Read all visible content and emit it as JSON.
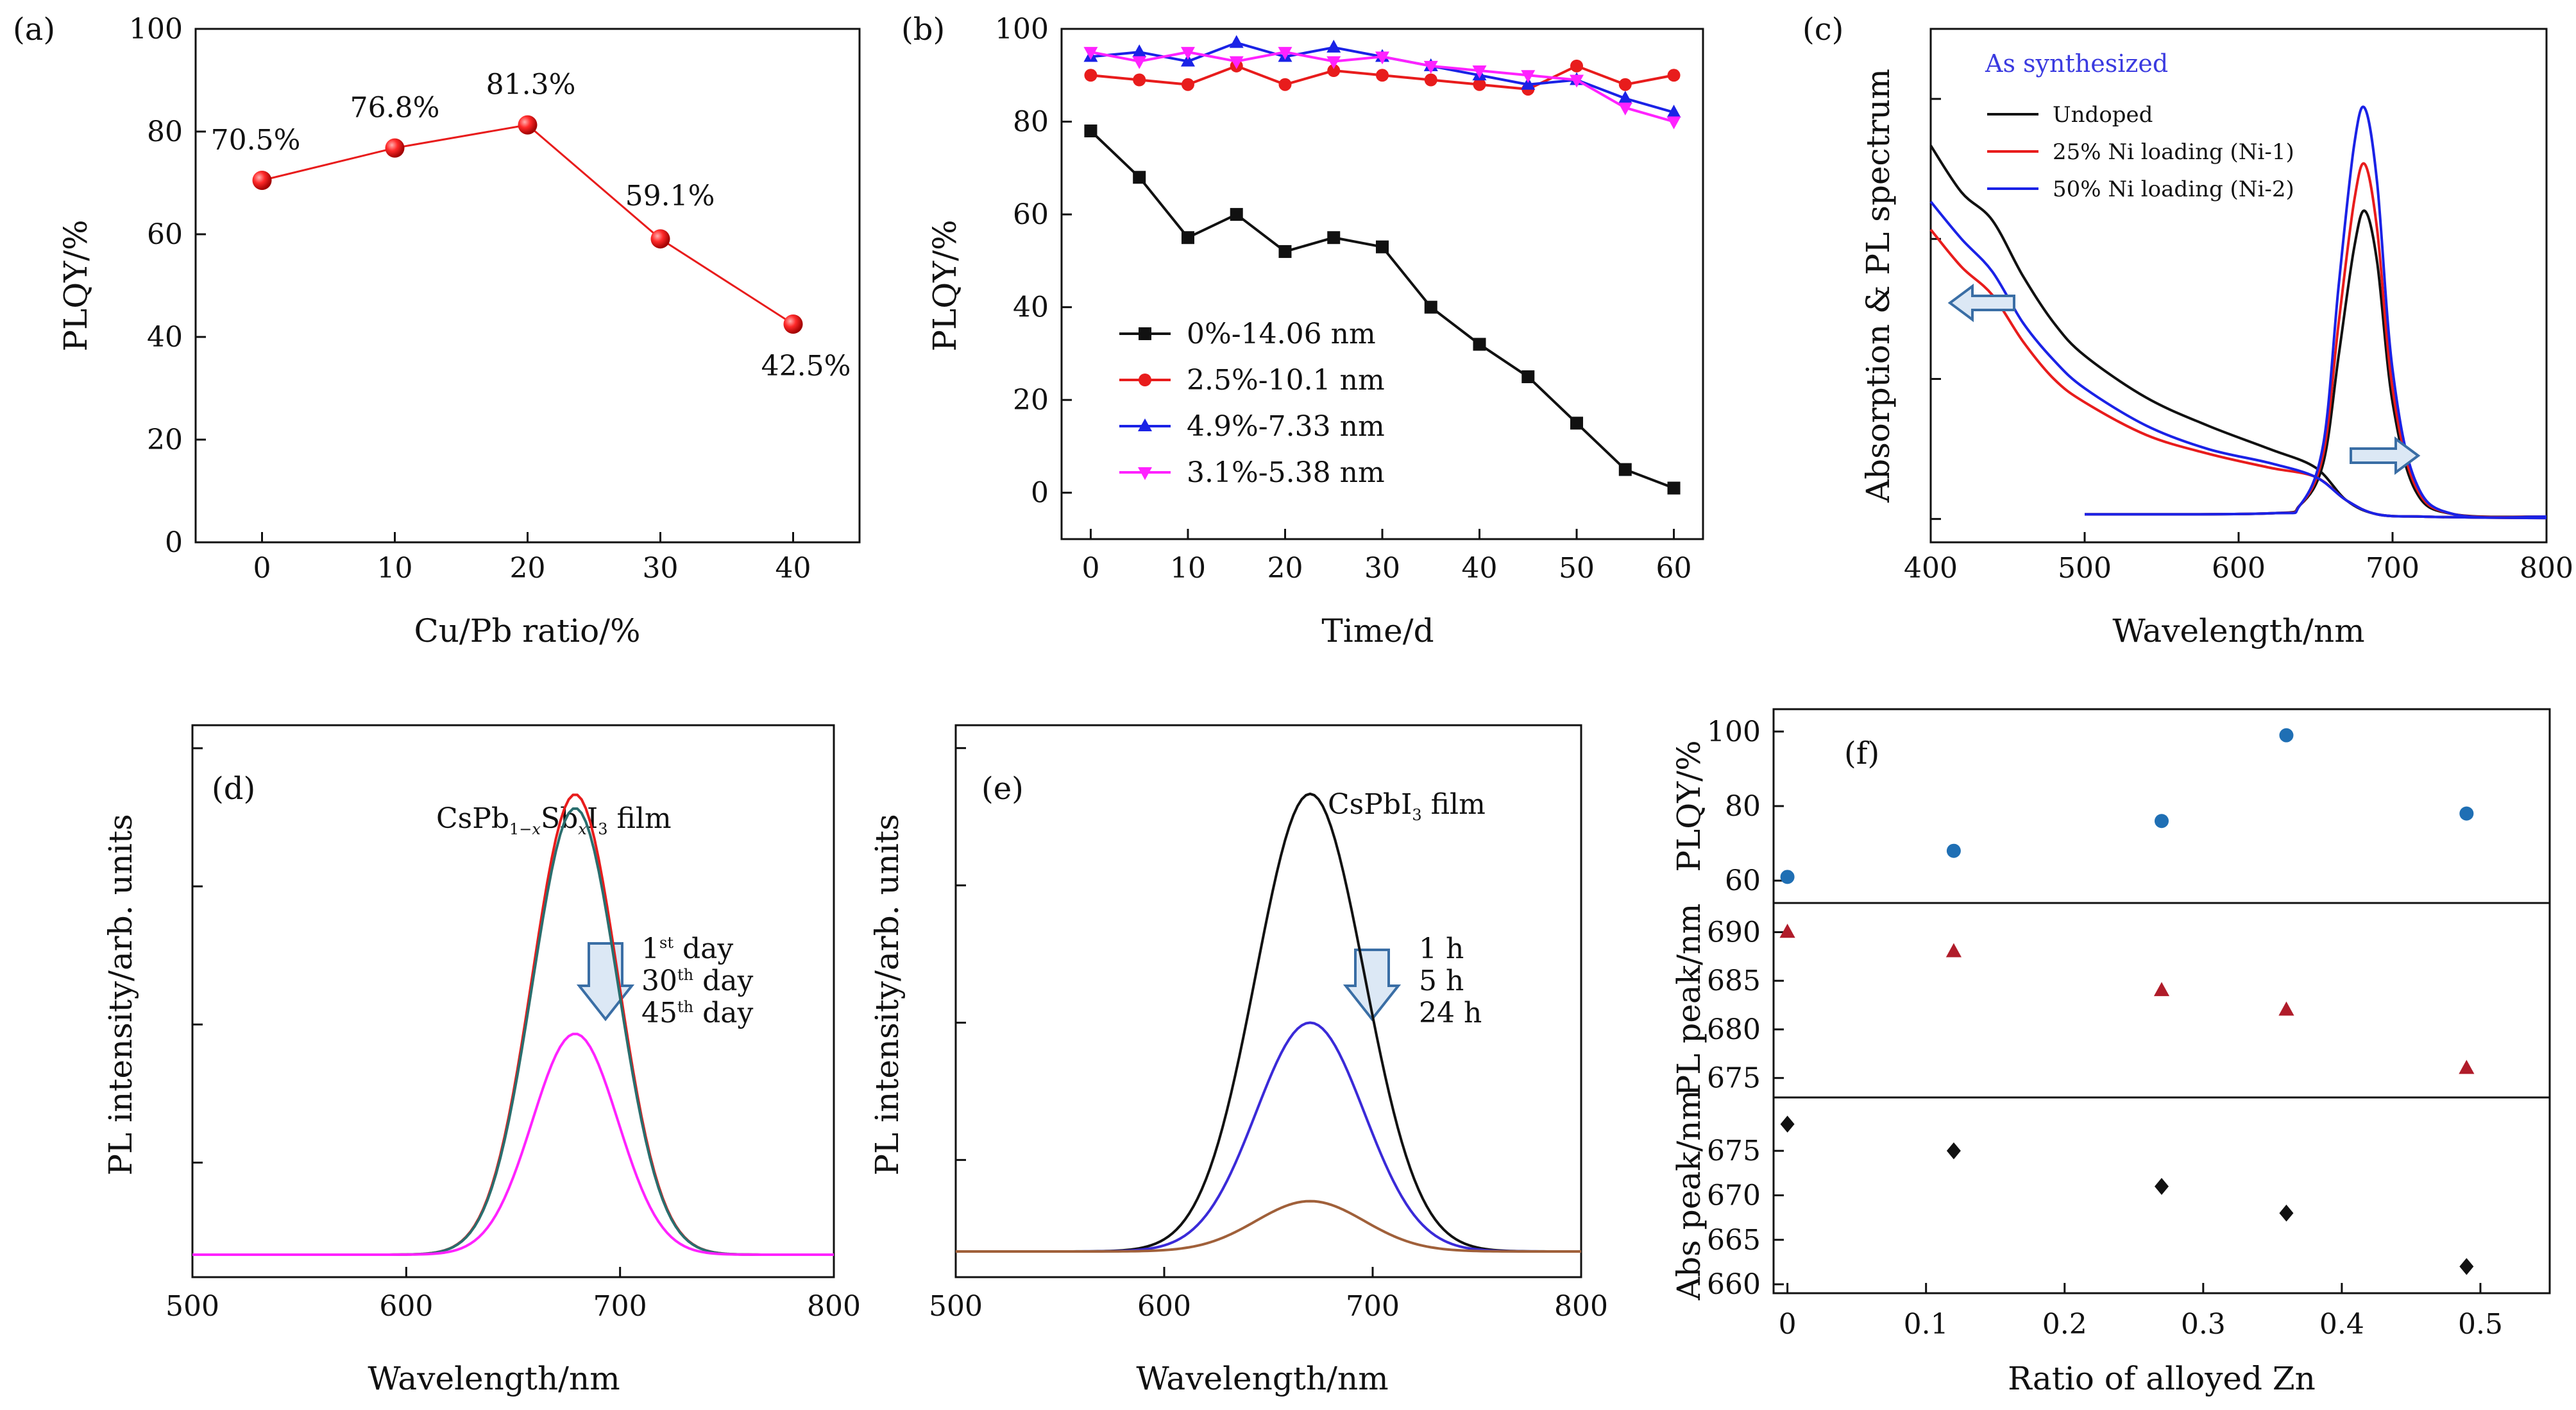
{
  "colors": {
    "axis": "#111111",
    "red": "#e81c1c",
    "black": "#111111",
    "blue": "#1a22e6",
    "magenta": "#ff22ff",
    "teal": "#2a6e6e",
    "brown": "#a0603a",
    "purple_blue": "#3a2ad8",
    "dark_red": "#b01c2a",
    "steel_blue": "#1f6fb4",
    "arrow_fill": "#dce8f5",
    "arrow_stroke": "#3a6ea5",
    "as_synth": "#3a3ae0"
  },
  "chart_data": [
    {
      "id": "a",
      "panel_label": "(a)",
      "type": "line",
      "xlabel": "Cu/Pb ratio/%",
      "ylabel": "PLQY/%",
      "xlim": [
        -5,
        45
      ],
      "ylim": [
        0,
        100
      ],
      "xticks": [
        "0",
        "10",
        "20",
        "30",
        "40"
      ],
      "yticks": [
        "0",
        "20",
        "40",
        "60",
        "80",
        "100"
      ],
      "series": [
        {
          "x": [
            0,
            10,
            20,
            30,
            40
          ],
          "y": [
            70.5,
            76.8,
            81.3,
            59.1,
            42.5
          ],
          "color": "red",
          "marker": "sphere"
        }
      ],
      "data_labels": [
        "70.5%",
        "76.8%",
        "81.3%",
        "59.1%",
        "42.5%"
      ]
    },
    {
      "id": "b",
      "panel_label": "(b)",
      "type": "line",
      "xlabel": "Time/d",
      "ylabel": "PLQY/%",
      "xlim": [
        -3,
        63
      ],
      "ylim": [
        -10,
        100
      ],
      "xticks": [
        "0",
        "10",
        "20",
        "30",
        "40",
        "50",
        "60"
      ],
      "yticks": [
        "0",
        "20",
        "40",
        "60",
        "80",
        "100"
      ],
      "legend_position": "lower-left",
      "series": [
        {
          "name": "0%-14.06 nm",
          "color": "black",
          "marker": "square",
          "x": [
            0,
            5,
            10,
            15,
            20,
            25,
            30,
            35,
            40,
            45,
            50,
            55,
            60
          ],
          "y": [
            78,
            68,
            55,
            60,
            52,
            55,
            53,
            40,
            32,
            25,
            15,
            5,
            1
          ]
        },
        {
          "name": "2.5%-10.1 nm",
          "color": "red",
          "marker": "circle",
          "x": [
            0,
            5,
            10,
            15,
            20,
            25,
            30,
            35,
            40,
            45,
            50,
            55,
            60
          ],
          "y": [
            90,
            89,
            88,
            92,
            88,
            91,
            90,
            89,
            88,
            87,
            92,
            88,
            90
          ]
        },
        {
          "name": "4.9%-7.33 nm",
          "color": "blue",
          "marker": "triangle-up",
          "x": [
            0,
            5,
            10,
            15,
            20,
            25,
            30,
            35,
            40,
            45,
            50,
            55,
            60
          ],
          "y": [
            94,
            95,
            93,
            97,
            94,
            96,
            94,
            92,
            90,
            88,
            89,
            85,
            82
          ]
        },
        {
          "name": "3.1%-5.38 nm",
          "color": "magenta",
          "marker": "triangle-down",
          "x": [
            0,
            5,
            10,
            15,
            20,
            25,
            30,
            35,
            40,
            45,
            50,
            55,
            60
          ],
          "y": [
            95,
            93,
            95,
            93,
            95,
            93,
            94,
            92,
            91,
            90,
            89,
            83,
            80
          ]
        }
      ]
    },
    {
      "id": "c",
      "panel_label": "(c)",
      "type": "line",
      "xlabel": "Wavelength/nm",
      "ylabel": "Absorption & PL spectrum",
      "xlim": [
        400,
        800
      ],
      "ylim": [
        0,
        1.1
      ],
      "xticks": [
        "400",
        "500",
        "600",
        "700",
        "800"
      ],
      "annotation": "As synthesized",
      "legend_position": "top-left",
      "series": [
        {
          "name": "Undoped",
          "color": "black",
          "absorption": {
            "x": [
              400,
              420,
              440,
              460,
              480,
              500,
              540,
              580,
              620,
              650,
              670,
              690,
              720,
              760,
              800
            ],
            "y": [
              0.8,
              0.7,
              0.64,
              0.52,
              0.42,
              0.35,
              0.26,
              0.2,
              0.15,
              0.11,
              0.04,
              0.01,
              0.005,
              0.003,
              0.002
            ]
          },
          "pl": {
            "x": [
              500,
              620,
              640,
              655,
              665,
              675,
              682,
              690,
              700,
              715,
              740,
              800
            ],
            "y": [
              0.01,
              0.012,
              0.03,
              0.12,
              0.35,
              0.58,
              0.66,
              0.55,
              0.25,
              0.06,
              0.01,
              0.005
            ]
          }
        },
        {
          "name": "25% Ni loading (Ni-1)",
          "color": "red",
          "absorption": {
            "x": [
              400,
              420,
              440,
              460,
              480,
              500,
              540,
              580,
              620,
              650,
              670,
              690,
              720,
              760,
              800
            ],
            "y": [
              0.62,
              0.54,
              0.48,
              0.38,
              0.3,
              0.25,
              0.18,
              0.14,
              0.11,
              0.09,
              0.04,
              0.01,
              0.005,
              0.003,
              0.002
            ]
          },
          "pl": {
            "x": [
              500,
              620,
              640,
              655,
              665,
              675,
              682,
              690,
              700,
              715,
              740,
              800
            ],
            "y": [
              0.01,
              0.012,
              0.03,
              0.14,
              0.42,
              0.68,
              0.76,
              0.62,
              0.28,
              0.07,
              0.01,
              0.005
            ]
          }
        },
        {
          "name": "50% Ni loading (Ni-2)",
          "color": "blue",
          "absorption": {
            "x": [
              400,
              420,
              440,
              460,
              480,
              500,
              540,
              580,
              620,
              650,
              670,
              690,
              720,
              760,
              800
            ],
            "y": [
              0.68,
              0.6,
              0.53,
              0.42,
              0.34,
              0.28,
              0.2,
              0.15,
              0.12,
              0.09,
              0.04,
              0.01,
              0.005,
              0.003,
              0.002
            ]
          },
          "pl": {
            "x": [
              500,
              620,
              640,
              655,
              665,
              675,
              682,
              690,
              700,
              715,
              740,
              800
            ],
            "y": [
              0.01,
              0.012,
              0.03,
              0.16,
              0.5,
              0.8,
              0.88,
              0.72,
              0.32,
              0.08,
              0.01,
              0.005
            ]
          }
        }
      ]
    },
    {
      "id": "d",
      "panel_label": "(d)",
      "type": "line",
      "xlabel": "Wavelength/nm",
      "ylabel": "PL intensity/arb. units",
      "xlim": [
        500,
        800
      ],
      "xticks": [
        "500",
        "600",
        "700",
        "800"
      ],
      "sample_label": {
        "base": "CsPb",
        "sub1": "1−",
        "subvar": "x",
        "mid": "Sb",
        "sub2": "x",
        "tail": "I",
        "sub3": "3",
        "end": " film"
      },
      "legend": [
        {
          "text": "1",
          "sup": "st",
          "rest": " day"
        },
        {
          "text": "30",
          "sup": "th",
          "rest": " day"
        },
        {
          "text": "45",
          "sup": "th",
          "rest": " day"
        }
      ],
      "series": [
        {
          "color": "red",
          "peak_x": 679,
          "peak_y": 1.0,
          "width": 20
        },
        {
          "color": "teal",
          "peak_x": 679,
          "peak_y": 0.97,
          "width": 20
        },
        {
          "color": "magenta",
          "peak_x": 679,
          "peak_y": 0.48,
          "width": 20
        }
      ]
    },
    {
      "id": "e",
      "panel_label": "(e)",
      "type": "line",
      "xlabel": "Wavelength/nm",
      "ylabel": "PL intensity/arb. units",
      "xlim": [
        500,
        800
      ],
      "xticks": [
        "500",
        "600",
        "700",
        "800"
      ],
      "sample_label": {
        "base": "CsPbI",
        "sub": "3",
        "end": " film"
      },
      "legend": [
        "1 h",
        "5 h",
        "24 h"
      ],
      "series": [
        {
          "color": "black",
          "peak_x": 670,
          "peak_y": 1.0,
          "width": 26
        },
        {
          "color": "purple_blue",
          "peak_x": 670,
          "peak_y": 0.5,
          "width": 26
        },
        {
          "color": "brown",
          "peak_x": 670,
          "peak_y": 0.11,
          "width": 26
        }
      ]
    },
    {
      "id": "f",
      "panel_label": "(f)",
      "type": "scatter",
      "xlabel": "Ratio of alloyed Zn",
      "xlim": [
        -0.01,
        0.55
      ],
      "xticks": [
        "0",
        "0.1",
        "0.2",
        "0.3",
        "0.4",
        "0.5"
      ],
      "subplots": [
        {
          "ylabel": "PLQY/%",
          "ylim": [
            54,
            106
          ],
          "yticks": [
            "60",
            "80",
            "100"
          ],
          "color": "steel_blue",
          "marker": "circle",
          "x": [
            0,
            0.12,
            0.27,
            0.36,
            0.49
          ],
          "y": [
            61,
            68,
            76,
            99,
            78
          ]
        },
        {
          "ylabel": "PL peak/nm",
          "ylim": [
            673,
            693
          ],
          "yticks": [
            "675",
            "680",
            "685",
            "690"
          ],
          "color": "dark_red",
          "marker": "triangle-up",
          "x": [
            0,
            0.12,
            0.27,
            0.36,
            0.49
          ],
          "y": [
            690,
            688,
            684,
            682,
            676
          ]
        },
        {
          "ylabel": "Abs peak/nm",
          "ylim": [
            659,
            681
          ],
          "yticks": [
            "660",
            "665",
            "670",
            "675"
          ],
          "color": "black",
          "marker": "diamond",
          "x": [
            0,
            0.12,
            0.27,
            0.36,
            0.49
          ],
          "y": [
            678,
            675,
            671,
            668,
            662
          ]
        }
      ]
    }
  ]
}
